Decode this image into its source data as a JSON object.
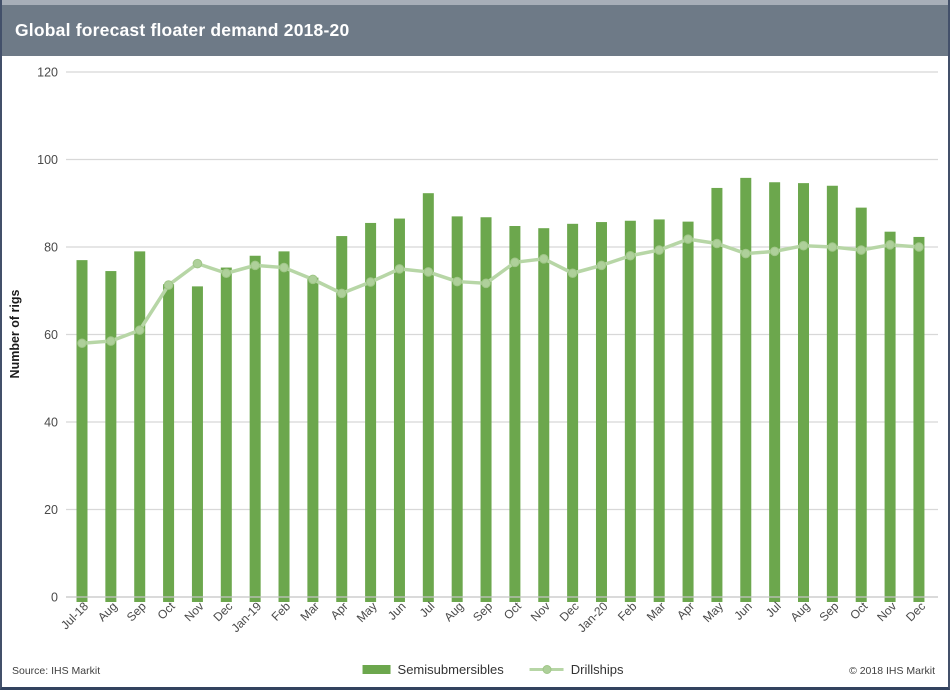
{
  "header": {
    "title": "Global forecast floater demand 2018-20"
  },
  "footer": {
    "source": "Source: IHS Markit",
    "copyright": "© 2018 IHS Markit"
  },
  "colors": {
    "header_bg": "#6e7a87",
    "header_text": "#ffffff",
    "bar": "#6ca74d",
    "line": "#b7d6a6",
    "marker_fill": "#aed09a",
    "marker_stroke": "#9fc687",
    "gridline": "#d8d8d8",
    "axis_line": "#c4c4c4",
    "tick_label": "#4a4a4a",
    "axis_title": "#1a1a1a",
    "frame_border": "#43506a"
  },
  "chart_data": {
    "type": "bar",
    "title": "Global forecast floater demand 2018-20",
    "xlabel": "",
    "ylabel": "Number of rigs",
    "ylim": [
      0,
      120
    ],
    "yticks": [
      0,
      20,
      40,
      60,
      80,
      100,
      120
    ],
    "grid": true,
    "legend_position": "bottom",
    "categories": [
      "Jul-18",
      "Aug",
      "Sep",
      "Oct",
      "Nov",
      "Dec",
      "Jan-19",
      "Feb",
      "Mar",
      "Apr",
      "May",
      "Jun",
      "Jul",
      "Aug",
      "Sep",
      "Oct",
      "Nov",
      "Dec",
      "Jan-20",
      "Feb",
      "Mar",
      "Apr",
      "May",
      "Jun",
      "Jul",
      "Aug",
      "Sep",
      "Oct",
      "Nov",
      "Dec"
    ],
    "series": [
      {
        "name": "Semisubmersibles",
        "type": "bar",
        "values": [
          77,
          74.5,
          79,
          71.5,
          71,
          75.3,
          78,
          79,
          73,
          82.5,
          85.5,
          86.5,
          92.3,
          87,
          86.8,
          84.8,
          84.3,
          85.3,
          85.7,
          86,
          86.3,
          85.8,
          93.5,
          95.8,
          94.8,
          94.6,
          94,
          89,
          83.5,
          82.3
        ]
      },
      {
        "name": "Drillships",
        "type": "line",
        "values": [
          58,
          58.5,
          61,
          71.3,
          76.2,
          74,
          75.8,
          75.3,
          72.6,
          69.4,
          72,
          75,
          74.3,
          72.1,
          71.7,
          76.5,
          77.3,
          74,
          75.8,
          78,
          79.3,
          81.8,
          80.8,
          78.5,
          79,
          80.3,
          80,
          79.3,
          80.5,
          80
        ]
      }
    ]
  }
}
